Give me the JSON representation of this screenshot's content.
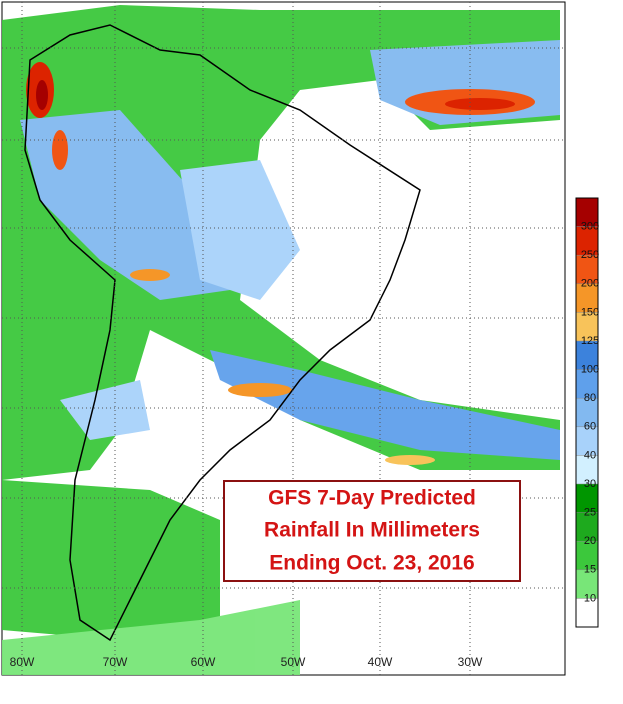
{
  "title_lines": [
    "GFS 7-Day Predicted",
    "Rainfall In Millimeters",
    "Ending Oct. 23, 2016"
  ],
  "longitude_labels": [
    "80W",
    "70W",
    "60W",
    "50W",
    "40W",
    "30W"
  ],
  "legend": {
    "levels": [
      10,
      15,
      20,
      25,
      30,
      40,
      60,
      80,
      100,
      125,
      150,
      200,
      250,
      300
    ],
    "colors": [
      "#ffffff",
      "#78e678",
      "#3cc83c",
      "#1eaa1e",
      "#009600",
      "#d2f0ff",
      "#a8d2fa",
      "#82b9f0",
      "#5fa0eb",
      "#3c82dc",
      "#f8c35a",
      "#f59628",
      "#f05514",
      "#dc2300",
      "#a50000"
    ]
  }
}
